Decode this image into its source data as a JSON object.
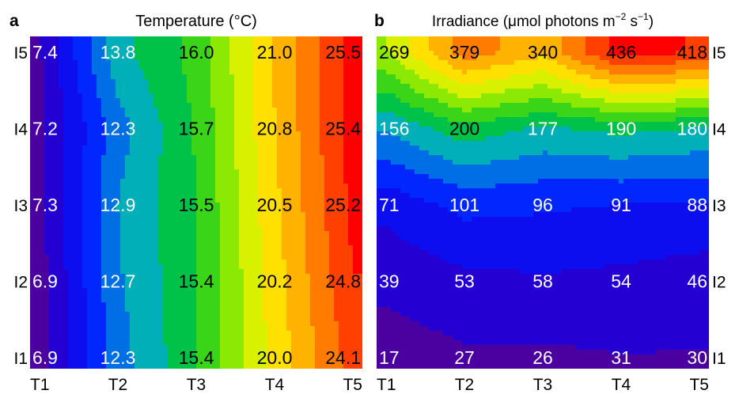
{
  "chart_data": [
    {
      "type": "heatmap",
      "panel_label": "a",
      "title": "Temperature (°C)",
      "x": [
        "T1",
        "T2",
        "T3",
        "T4",
        "T5"
      ],
      "y": [
        "I1",
        "I2",
        "I3",
        "I4",
        "I5"
      ],
      "z": [
        [
          6.9,
          12.3,
          15.4,
          20.0,
          24.1
        ],
        [
          6.9,
          12.7,
          15.4,
          20.2,
          24.8
        ],
        [
          7.3,
          12.9,
          15.5,
          20.5,
          25.2
        ],
        [
          7.2,
          12.3,
          15.7,
          20.8,
          25.4
        ],
        [
          7.4,
          13.8,
          16.0,
          21.0,
          25.5
        ]
      ],
      "cell_labels": [
        [
          "6.9",
          "12.3",
          "15.4",
          "20.0",
          "24.1"
        ],
        [
          "6.9",
          "12.7",
          "15.4",
          "20.2",
          "24.8"
        ],
        [
          "7.3",
          "12.9",
          "15.5",
          "20.5",
          "25.2"
        ],
        [
          "7.2",
          "12.3",
          "15.7",
          "20.8",
          "25.4"
        ],
        [
          "7.4",
          "13.8",
          "16.0",
          "21.0",
          "25.5"
        ]
      ],
      "zlim": [
        6.9,
        25.5
      ],
      "colormap": "rainbow"
    },
    {
      "type": "heatmap",
      "panel_label": "b",
      "title_main": "Irradiance (μmol photons m",
      "title_sup1": "−2",
      "title_mid": " s",
      "title_sup2": "−1",
      "title_end": ")",
      "x": [
        "T1",
        "T2",
        "T3",
        "T4",
        "T5"
      ],
      "y": [
        "I1",
        "I2",
        "I3",
        "I4",
        "I5"
      ],
      "z": [
        [
          17,
          27,
          26,
          31,
          30
        ],
        [
          39,
          53,
          58,
          54,
          46
        ],
        [
          71,
          101,
          96,
          91,
          88
        ],
        [
          156,
          200,
          177,
          190,
          180
        ],
        [
          269,
          379,
          340,
          436,
          418
        ]
      ],
      "cell_labels": [
        [
          "17",
          "27",
          "26",
          "31",
          "30"
        ],
        [
          "39",
          "53",
          "58",
          "54",
          "46"
        ],
        [
          "71",
          "101",
          "96",
          "91",
          "88"
        ],
        [
          "156",
          "200",
          "177",
          "190",
          "180"
        ],
        [
          "269",
          "379",
          "340",
          "436",
          "418"
        ]
      ],
      "zlim": [
        17,
        436
      ],
      "colormap": "rainbow"
    }
  ]
}
